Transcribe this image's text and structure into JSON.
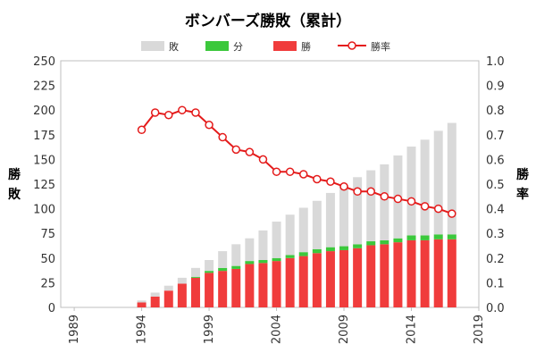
{
  "chart_data": {
    "type": "bar",
    "title": "ボンバーズ勝敗（累計）",
    "ylabel": [
      "勝",
      "敗"
    ],
    "y2label": [
      "勝",
      "率"
    ],
    "legend": [
      {
        "name": "敗",
        "color": "#d9d9d9",
        "kind": "bar"
      },
      {
        "name": "分",
        "color": "#3cc83c",
        "kind": "bar"
      },
      {
        "name": "勝",
        "color": "#f03c3c",
        "kind": "bar"
      },
      {
        "name": "勝率",
        "color": "#e41b1b",
        "kind": "line"
      }
    ],
    "legend_position": "top",
    "grid": false,
    "xlim": [
      1988,
      2019
    ],
    "x_ticks": [
      "1989",
      "1994",
      "1999",
      "2004",
      "2009",
      "2014",
      "2019"
    ],
    "ylim": [
      0,
      250
    ],
    "y_ticks": [
      "0",
      "25",
      "50",
      "75",
      "100",
      "125",
      "150",
      "175",
      "200",
      "225",
      "250"
    ],
    "y2lim": [
      0,
      1
    ],
    "y2_ticks": [
      "0.0",
      "0.1",
      "0.2",
      "0.3",
      "0.4",
      "0.5",
      "0.6",
      "0.7",
      "0.8",
      "0.9",
      "1.0"
    ],
    "x": [
      1994,
      1995,
      1996,
      1997,
      1998,
      1999,
      2000,
      2001,
      2002,
      2003,
      2004,
      2005,
      2006,
      2007,
      2008,
      2009,
      2010,
      2011,
      2012,
      2013,
      2014,
      2015,
      2016,
      2017
    ],
    "series": [
      {
        "name": "勝",
        "values": [
          5,
          11,
          17,
          24,
          30,
          35,
          37,
          39,
          44,
          45,
          47,
          50,
          52,
          55,
          57,
          58,
          60,
          63,
          64,
          66,
          68,
          68,
          69,
          69
        ]
      },
      {
        "name": "分",
        "values": [
          0,
          0,
          0,
          0,
          1,
          2,
          3,
          3,
          3,
          3,
          3,
          3,
          4,
          4,
          4,
          4,
          4,
          4,
          4,
          4,
          5,
          5,
          5,
          5
        ]
      },
      {
        "name": "敗",
        "values": [
          2,
          4,
          5,
          6,
          9,
          11,
          17,
          22,
          23,
          30,
          37,
          41,
          45,
          49,
          55,
          61,
          68,
          72,
          77,
          84,
          90,
          97,
          105,
          113
        ]
      },
      {
        "name": "勝率",
        "values": [
          0.72,
          0.79,
          0.78,
          0.8,
          0.79,
          0.74,
          0.69,
          0.64,
          0.63,
          0.6,
          0.55,
          0.55,
          0.54,
          0.52,
          0.51,
          0.49,
          0.47,
          0.47,
          0.45,
          0.44,
          0.43,
          0.41,
          0.4,
          0.38
        ]
      }
    ]
  }
}
